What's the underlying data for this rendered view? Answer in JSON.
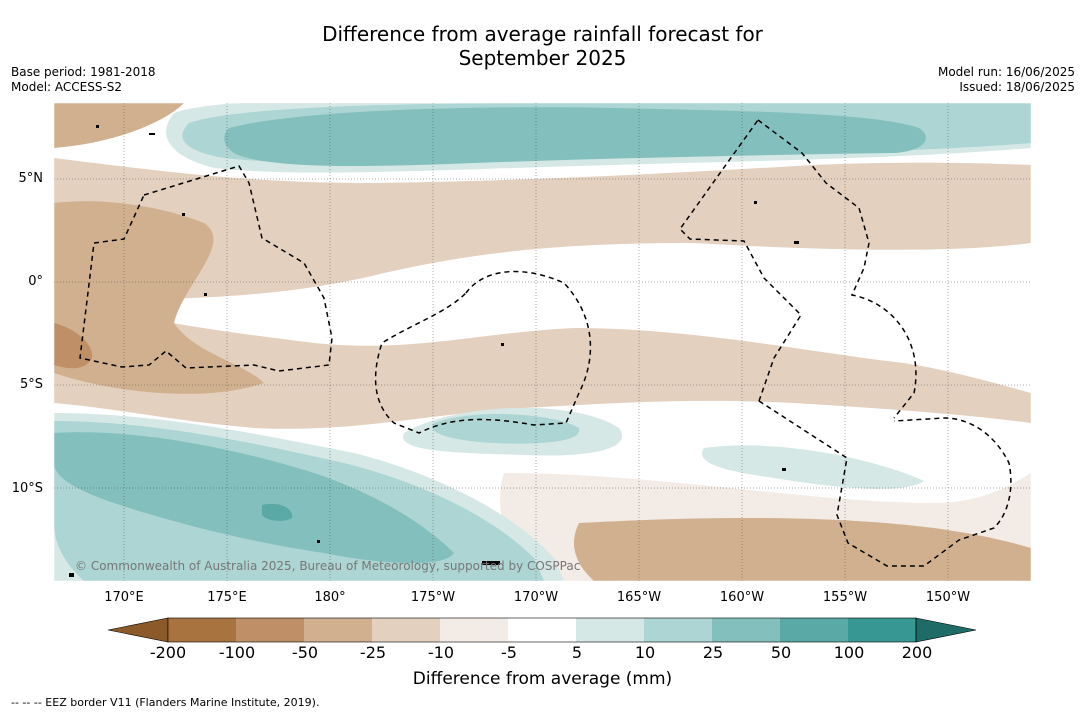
{
  "title_line1": "Difference from average rainfall forecast for",
  "title_line2": "September 2025",
  "base_period": "Base period: 1981-2018",
  "model": "Model: ACCESS-S2",
  "model_run": "Model run: 16/06/2025",
  "issued": "Issued: 18/06/2025",
  "lat_ticks": [
    "5°N",
    "0°",
    "5°S",
    "10°S"
  ],
  "lon_ticks": [
    "170°E",
    "175°E",
    "180°",
    "175°W",
    "170°W",
    "165°W",
    "160°W",
    "155°W",
    "150°W"
  ],
  "copyright": "© Commonwealth of Australia 2025, Bureau of Meteorology, supported by COSPPac",
  "colorbar": {
    "title": "Difference from average (mm)",
    "labels": [
      "-200",
      "-100",
      "-50",
      "-25",
      "-10",
      "-5",
      "5",
      "10",
      "25",
      "50",
      "100",
      "200"
    ],
    "colors": [
      "#8c5a2a",
      "#a8733f",
      "#bf9068",
      "#d1b08f",
      "#e4d0bf",
      "#f3ebe5",
      "#ffffff",
      "#d5e8e6",
      "#acd5d3",
      "#82bfbd",
      "#5aa9a6",
      "#379793",
      "#1f6b68"
    ]
  },
  "footnote": "-- -- -- EEZ border V11 (Flanders Marine Institute, 2019)."
}
